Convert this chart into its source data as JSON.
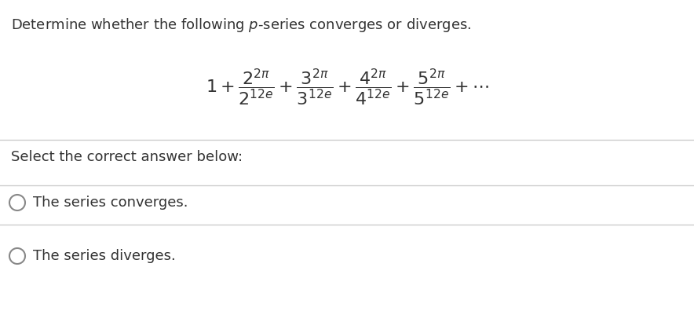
{
  "title_text": "Determine whether the following $p$-series converges or diverges.",
  "formula": "1 + \\frac{2^{2\\pi}}{2^{12e}} + \\frac{3^{2\\pi}}{3^{12e}} + \\frac{4^{2\\pi}}{4^{12e}} + \\frac{5^{2\\pi}}{5^{12e}} + \\cdots",
  "prompt": "Select the correct answer below:",
  "option1": "The series converges.",
  "option2": "The series diverges.",
  "bg_color": "#ffffff",
  "text_color": "#333333",
  "line_color": "#cccccc",
  "title_fontsize": 13,
  "formula_fontsize": 14,
  "prompt_fontsize": 13,
  "option_fontsize": 13
}
